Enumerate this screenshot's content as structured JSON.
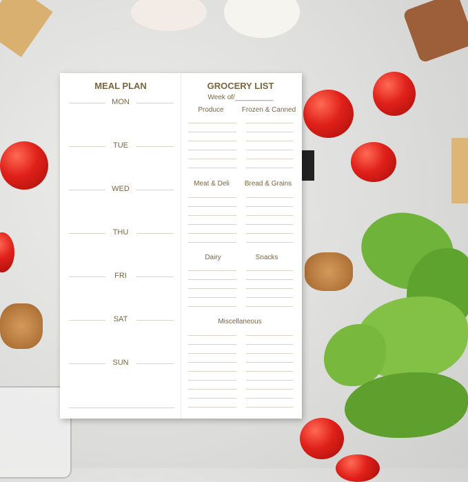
{
  "meal_plan": {
    "title": "MEAL PLAN",
    "days": [
      "MON",
      "TUE",
      "WED",
      "THU",
      "FRI",
      "SAT",
      "SUN"
    ]
  },
  "grocery_list": {
    "title": "GROCERY LIST",
    "week_of": "Week of/__________",
    "sections": [
      "Produce",
      "Frozen & Canned",
      "Meat & Deli",
      "Bread & Grains",
      "Dairy",
      "Snacks",
      "Miscellaneous"
    ]
  },
  "colors": {
    "text": "#7a6440",
    "tomato": "#e0201a",
    "lettuce": "#6fb33a"
  }
}
